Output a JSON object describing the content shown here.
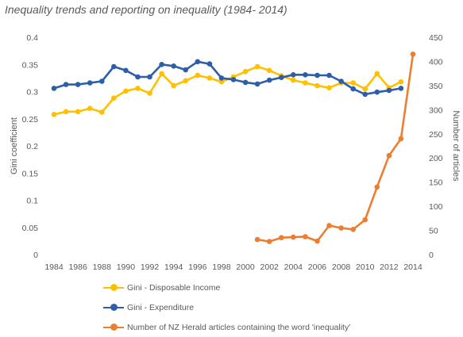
{
  "chart_data": {
    "type": "line",
    "title": "Inequality trends and reporting on inequality (1984- 2014)",
    "x_ticks": [
      1984,
      1986,
      1988,
      1990,
      1992,
      1994,
      1996,
      1998,
      2000,
      2002,
      2004,
      2006,
      2008,
      2010,
      2012,
      2014
    ],
    "xlim": [
      1984,
      2014
    ],
    "ylabel_left": "Gini coefficient",
    "ylim_left": [
      0,
      0.4
    ],
    "yticks_left": [
      "0",
      "0.05",
      "0.1",
      "0.15",
      "0.2",
      "0.25",
      "0.3",
      "0.35",
      "0.4"
    ],
    "ylabel_right": "Number of articles",
    "ylim_right": [
      0,
      450
    ],
    "yticks_right": [
      "0",
      "50",
      "100",
      "150",
      "200",
      "250",
      "300",
      "350",
      "400",
      "450"
    ],
    "grid": false,
    "legend_position": "bottom",
    "series": [
      {
        "name": "Gini - Disposable Income",
        "axis": "left",
        "color": "#FFC000",
        "x": [
          1984,
          1985,
          1986,
          1987,
          1988,
          1989,
          1990,
          1991,
          1992,
          1993,
          1994,
          1995,
          1996,
          1997,
          1998,
          1999,
          2000,
          2001,
          2002,
          2003,
          2004,
          2005,
          2006,
          2007,
          2008,
          2009,
          2010,
          2011,
          2012,
          2013
        ],
        "y": [
          0.258,
          0.263,
          0.263,
          0.269,
          0.262,
          0.288,
          0.301,
          0.306,
          0.297,
          0.333,
          0.311,
          0.32,
          0.33,
          0.325,
          0.318,
          0.327,
          0.337,
          0.346,
          0.339,
          0.329,
          0.321,
          0.316,
          0.311,
          0.307,
          0.316,
          0.316,
          0.305,
          0.333,
          0.307,
          0.318
        ]
      },
      {
        "name": "Gini - Expenditure",
        "axis": "left",
        "color": "#2E5EA8",
        "x": [
          1984,
          1985,
          1986,
          1987,
          1988,
          1989,
          1990,
          1991,
          1992,
          1993,
          1994,
          1995,
          1996,
          1997,
          1998,
          1999,
          2000,
          2001,
          2002,
          2003,
          2004,
          2005,
          2006,
          2007,
          2008,
          2009,
          2010,
          2011,
          2012,
          2013
        ],
        "y": [
          0.306,
          0.313,
          0.313,
          0.316,
          0.319,
          0.346,
          0.339,
          0.327,
          0.327,
          0.35,
          0.347,
          0.34,
          0.355,
          0.351,
          0.325,
          0.322,
          0.317,
          0.314,
          0.321,
          0.326,
          0.331,
          0.331,
          0.33,
          0.33,
          0.319,
          0.305,
          0.295,
          0.299,
          0.302,
          0.306
        ]
      },
      {
        "name": "Number of NZ Herald articles containing the word 'inequality'",
        "axis": "right",
        "color": "#ED7D31",
        "x": [
          2001,
          2002,
          2003,
          2004,
          2005,
          2006,
          2007,
          2008,
          2009,
          2010,
          2011,
          2012,
          2013,
          2014
        ],
        "y": [
          31,
          27,
          35,
          36,
          37,
          28,
          60,
          55,
          52,
          72,
          140,
          205,
          240,
          415
        ]
      }
    ]
  }
}
